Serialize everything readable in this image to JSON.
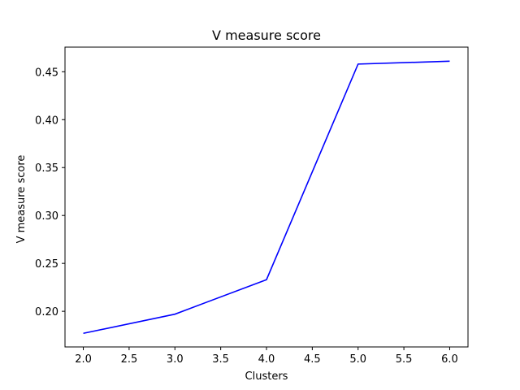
{
  "chart_data": {
    "type": "line",
    "title": "V measure score",
    "xlabel": "Clusters",
    "ylabel": "V measure score",
    "xlim": [
      1.8,
      6.2
    ],
    "ylim": [
      0.1628,
      0.4757
    ],
    "xticks": [
      2.0,
      2.5,
      3.0,
      3.5,
      4.0,
      4.5,
      5.0,
      5.5,
      6.0
    ],
    "xtick_labels": [
      "2.0",
      "2.5",
      "3.0",
      "3.5",
      "4.0",
      "4.5",
      "5.0",
      "5.5",
      "6.0"
    ],
    "yticks": [
      0.2,
      0.25,
      0.3,
      0.35,
      0.4,
      0.45
    ],
    "ytick_labels": [
      "0.20",
      "0.25",
      "0.30",
      "0.35",
      "0.40",
      "0.45"
    ],
    "grid": false,
    "series": [
      {
        "color": "#0000ff",
        "x": [
          2,
          3,
          4,
          5,
          6
        ],
        "values": [
          0.177,
          0.197,
          0.233,
          0.458,
          0.461
        ]
      }
    ]
  }
}
